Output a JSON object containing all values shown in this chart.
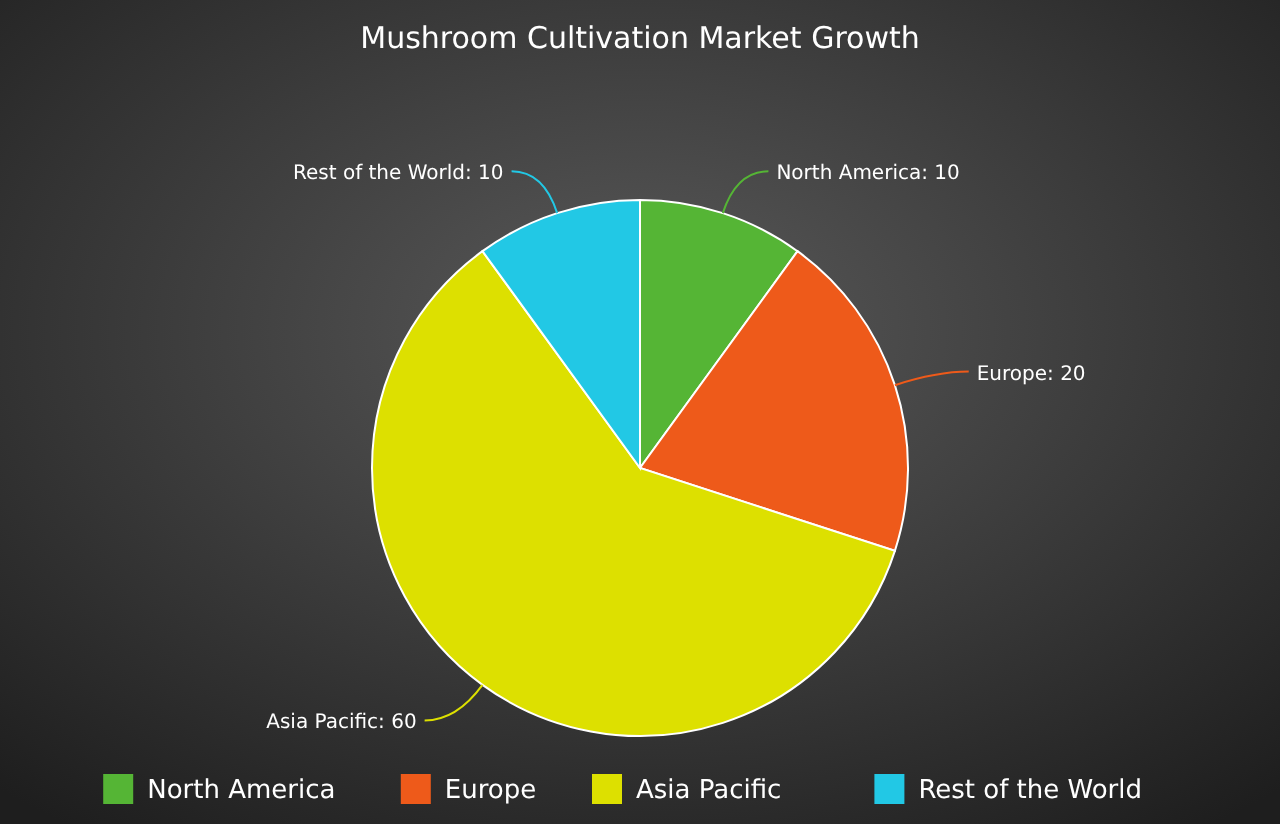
{
  "chart_data": {
    "type": "pie",
    "title": "Mushroom Cultivation Market Growth",
    "categories": [
      "North America",
      "Europe",
      "Asia Pacific",
      "Rest of the World"
    ],
    "values": [
      10,
      20,
      60,
      10
    ],
    "value_labels": [
      "North America: 10",
      "Europe: 20",
      "Asia Pacific: 60",
      "Rest of the World: 10"
    ],
    "colors": [
      "#55b535",
      "#ee5a1a",
      "#dde000",
      "#22c8e5"
    ],
    "legend": "bottom"
  }
}
